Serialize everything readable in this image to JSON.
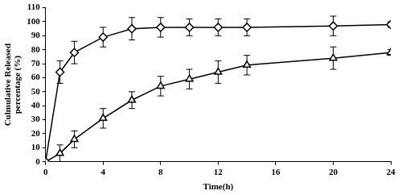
{
  "chart_data": {
    "type": "line",
    "xlabel": "Time(h)",
    "ylabel": [
      "Culmulative Released",
      "percentage (%)"
    ],
    "x": [
      0,
      1,
      2,
      4,
      6,
      8,
      10,
      12,
      14,
      20,
      24
    ],
    "series": [
      {
        "color": "#000000",
        "marker": "diamond",
        "line_style": "solid",
        "values": [
          0,
          64,
          78,
          89,
          95,
          96,
          96,
          96,
          96,
          97,
          98
        ],
        "errors": [
          0,
          8,
          8,
          7,
          8,
          7,
          6,
          6,
          6,
          7,
          2
        ]
      },
      {
        "color": "#000000",
        "marker": "triangle",
        "line_style": "solid",
        "values": [
          0,
          6,
          16,
          31,
          44,
          54,
          59,
          64,
          69,
          74,
          78
        ],
        "errors": [
          0,
          6,
          6,
          7,
          6,
          7,
          7,
          8,
          7,
          8,
          2
        ]
      }
    ],
    "xlim": [
      0,
      24
    ],
    "xticks": [
      0,
      4,
      8,
      12,
      16,
      20,
      24
    ],
    "ylim": [
      0,
      110
    ],
    "yticks": [
      0,
      10,
      20,
      30,
      40,
      50,
      60,
      70,
      80,
      90,
      100,
      110
    ],
    "grid": false
  }
}
